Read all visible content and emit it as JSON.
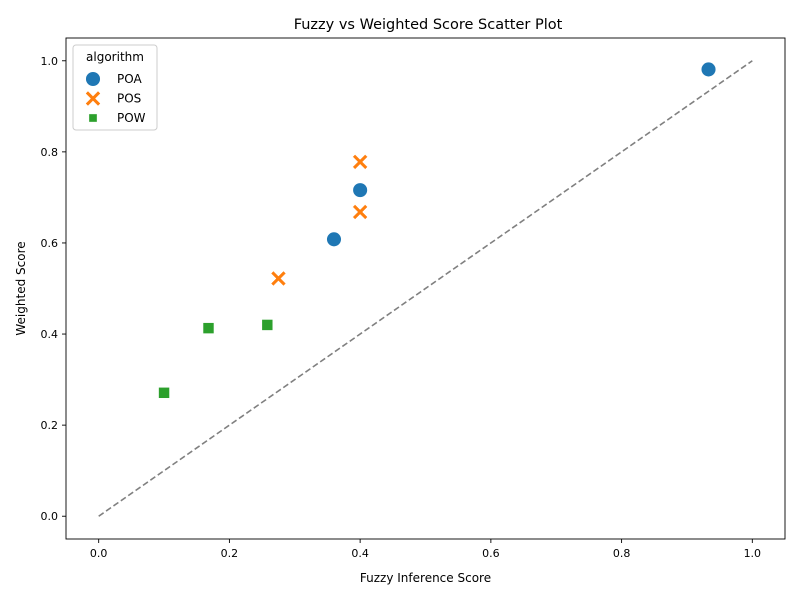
{
  "chart_data": {
    "type": "scatter",
    "title": "Fuzzy vs Weighted Score Scatter Plot",
    "xlabel": "Fuzzy Inference Score",
    "ylabel": "Weighted Score",
    "xlim": [
      -0.05,
      1.05
    ],
    "ylim": [
      -0.05,
      1.05
    ],
    "xticks": [
      0.0,
      0.2,
      0.4,
      0.6,
      0.8,
      1.0
    ],
    "yticks": [
      0.0,
      0.2,
      0.4,
      0.6,
      0.8,
      1.0
    ],
    "xtick_labels": [
      "0.0",
      "0.2",
      "0.4",
      "0.6",
      "0.8",
      "1.0"
    ],
    "ytick_labels": [
      "0.0",
      "0.2",
      "0.4",
      "0.6",
      "0.8",
      "1.0"
    ],
    "grid": false,
    "legend": {
      "title": "algorithm",
      "position": "top-left"
    },
    "reference_line": {
      "style": "dashed",
      "color": "#808080",
      "from": [
        0,
        0
      ],
      "to": [
        1,
        1
      ]
    },
    "series": [
      {
        "name": "POA",
        "marker": "circle",
        "color": "#1f77b4",
        "points": [
          [
            0.933,
            0.981
          ],
          [
            0.4,
            0.716
          ],
          [
            0.36,
            0.608
          ]
        ]
      },
      {
        "name": "POS",
        "marker": "x",
        "color": "#ff7f0e",
        "points": [
          [
            0.4,
            0.778
          ],
          [
            0.4,
            0.668
          ],
          [
            0.275,
            0.522
          ]
        ]
      },
      {
        "name": "POW",
        "marker": "square",
        "color": "#2ca02c",
        "points": [
          [
            0.258,
            0.42
          ],
          [
            0.168,
            0.413
          ],
          [
            0.1,
            0.271
          ]
        ]
      }
    ]
  }
}
